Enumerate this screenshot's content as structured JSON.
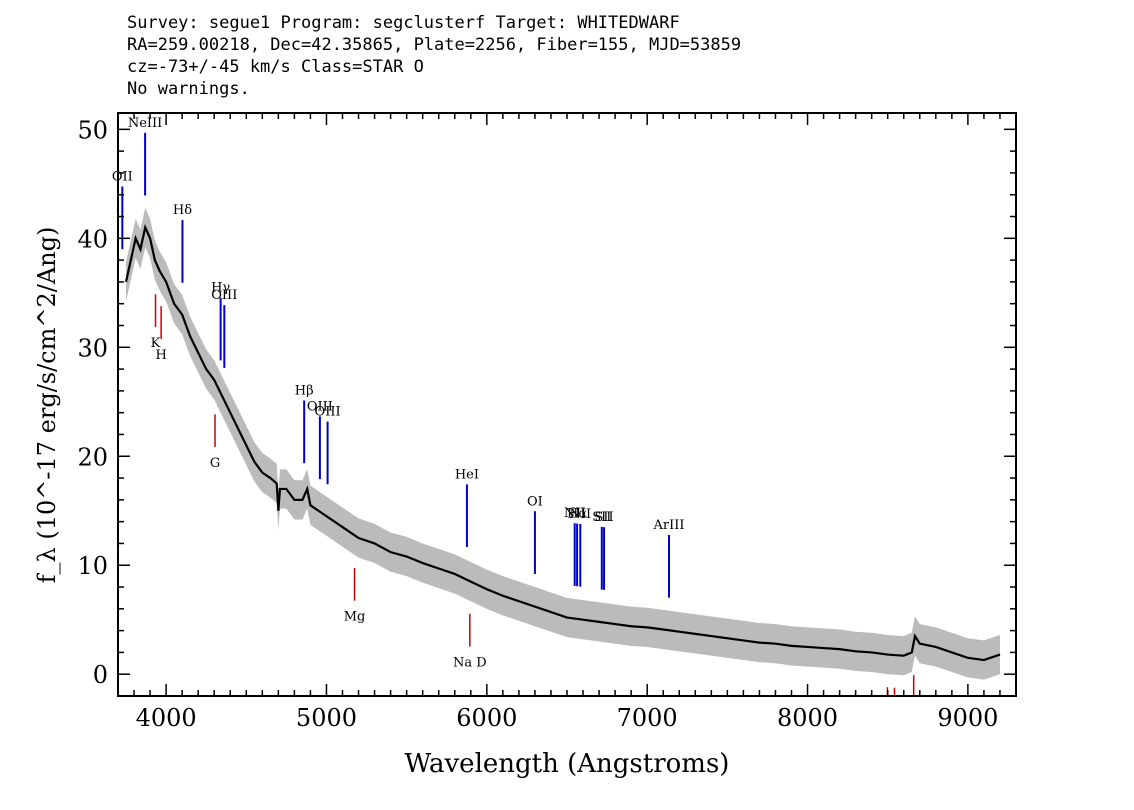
{
  "header": {
    "line1": "Survey: segue1 Program: segclusterf Target: WHITEDWARF",
    "line2": "RA=259.00218, Dec=42.35865, Plate=2256, Fiber=155, MJD=53859",
    "line3": "cz=-73+/-45 km/s Class=STAR O",
    "line4": "No warnings."
  },
  "chart_data": {
    "type": "line",
    "xlabel": "Wavelength (Angstroms)",
    "ylabel": "f_λ (10^-17 erg/s/cm^2/Ang)",
    "xlim": [
      3700,
      9300
    ],
    "ylim": [
      -2,
      51.5
    ],
    "xticks": [
      4000,
      5000,
      6000,
      7000,
      8000,
      9000
    ],
    "yticks": [
      0,
      10,
      20,
      30,
      40,
      50
    ],
    "series": [
      {
        "x": [
          3750,
          3780,
          3810,
          3840,
          3870,
          3900,
          3930,
          3960,
          4000,
          4050,
          4100,
          4150,
          4200,
          4250,
          4300,
          4350,
          4400,
          4450,
          4500,
          4550,
          4600,
          4650,
          4690,
          4700,
          4710,
          4750,
          4800,
          4850,
          4880,
          4900,
          4950,
          5000,
          5100,
          5200,
          5300,
          5400,
          5500,
          5600,
          5700,
          5800,
          5900,
          6000,
          6100,
          6200,
          6300,
          6400,
          6500,
          6600,
          6700,
          6800,
          6900,
          7000,
          7100,
          7200,
          7300,
          7400,
          7500,
          7600,
          7700,
          7800,
          7900,
          8000,
          8100,
          8200,
          8300,
          8400,
          8500,
          8600,
          8650,
          8670,
          8700,
          8800,
          8900,
          9000,
          9100,
          9200
        ],
        "y": [
          36,
          38,
          40,
          39,
          41,
          40,
          38,
          37,
          36,
          34,
          33,
          31,
          29.5,
          28,
          27,
          25.5,
          24,
          22.5,
          21,
          19.5,
          18.5,
          18,
          17.5,
          15,
          17,
          17,
          16,
          16,
          17,
          15.5,
          15,
          14.5,
          13.5,
          12.5,
          12,
          11.2,
          10.8,
          10.2,
          9.7,
          9.2,
          8.5,
          7.8,
          7.2,
          6.7,
          6.2,
          5.7,
          5.2,
          5.0,
          4.8,
          4.6,
          4.4,
          4.3,
          4.1,
          3.9,
          3.7,
          3.5,
          3.3,
          3.1,
          2.9,
          2.8,
          2.6,
          2.5,
          2.4,
          2.3,
          2.1,
          2.0,
          1.8,
          1.7,
          2.0,
          3.5,
          2.8,
          2.5,
          2.0,
          1.5,
          1.3,
          1.8
        ]
      }
    ],
    "lines_emission": [
      {
        "label": "OII",
        "x": 3727
      },
      {
        "label": "NeIII",
        "x": 3869
      },
      {
        "label": "Hδ",
        "x": 4102
      },
      {
        "label": "Hγ",
        "x": 4340
      },
      {
        "label": "OIII",
        "x": 4363
      },
      {
        "label": "Hβ",
        "x": 4861
      },
      {
        "label": "OIII",
        "x": 4959
      },
      {
        "label": "OIII",
        "x": 5007
      },
      {
        "label": "HeI",
        "x": 5876
      },
      {
        "label": "OI",
        "x": 6300
      },
      {
        "label": "NII",
        "x": 6548
      },
      {
        "label": "Hα",
        "x": 6563
      },
      {
        "label": "NII",
        "x": 6583
      },
      {
        "label": "SII",
        "x": 6717
      },
      {
        "label": "SII",
        "x": 6731
      },
      {
        "label": "ArIII",
        "x": 7136
      }
    ],
    "lines_absorption": [
      {
        "label": "K",
        "x": 3934
      },
      {
        "label": "H",
        "x": 3969
      },
      {
        "label": "G",
        "x": 4305
      },
      {
        "label": "Mg",
        "x": 5175
      },
      {
        "label": "Na D",
        "x": 5894
      },
      {
        "label": "",
        "x": 8498
      },
      {
        "label": "",
        "x": 8542
      },
      {
        "label": "",
        "x": 8662
      }
    ],
    "colors": {
      "spectrum": "#000000",
      "error": "#bbbbbb",
      "emission": "#0000cc",
      "absorption": "#cc0000"
    }
  }
}
